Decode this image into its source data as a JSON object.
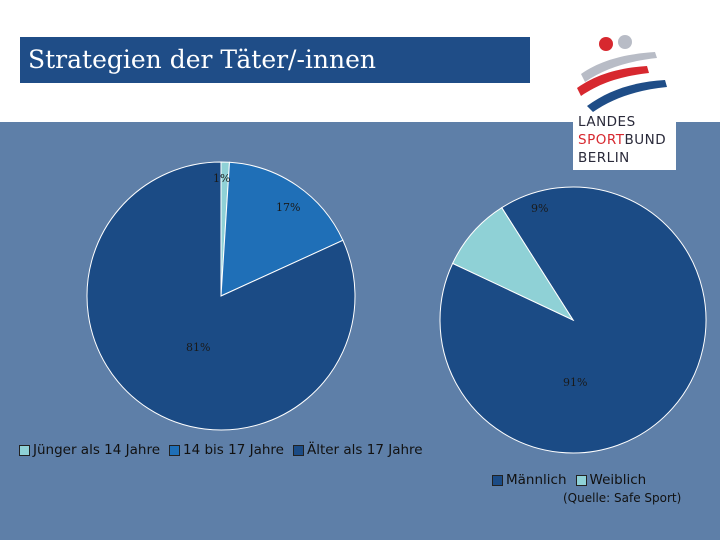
{
  "slide": {
    "title": "Strategien der Täter/-innen",
    "source_note": "(Quelle: Safe Sport)"
  },
  "logo": {
    "line1": "LANDES",
    "line2_red": "SPORT",
    "line2_dark": "BUND",
    "line3": "BERLIN"
  },
  "colors": {
    "title_bg": "#1f4d87",
    "panel_bg": "#5e7fa8",
    "dark_blue": "#1b4b85",
    "mid_blue": "#1f6fb7",
    "light_teal": "#8fd1d6"
  },
  "chart_data": [
    {
      "type": "pie",
      "title": "",
      "categories": [
        "Jünger als 14 Jahre",
        "14 bis 17 Jahre",
        "Älter als 17 Jahre"
      ],
      "values": [
        1,
        17,
        81
      ],
      "labels": [
        "1%",
        "17%",
        "81%"
      ],
      "colors": [
        "#8fd1d6",
        "#1f6fb7",
        "#1b4b85"
      ],
      "legend": "bottom-left"
    },
    {
      "type": "pie",
      "title": "",
      "categories": [
        "Männlich",
        "Weiblich"
      ],
      "values": [
        91,
        9
      ],
      "labels": [
        "91%",
        "9%"
      ],
      "colors": [
        "#1b4b85",
        "#8fd1d6"
      ],
      "legend": "bottom-right"
    }
  ]
}
